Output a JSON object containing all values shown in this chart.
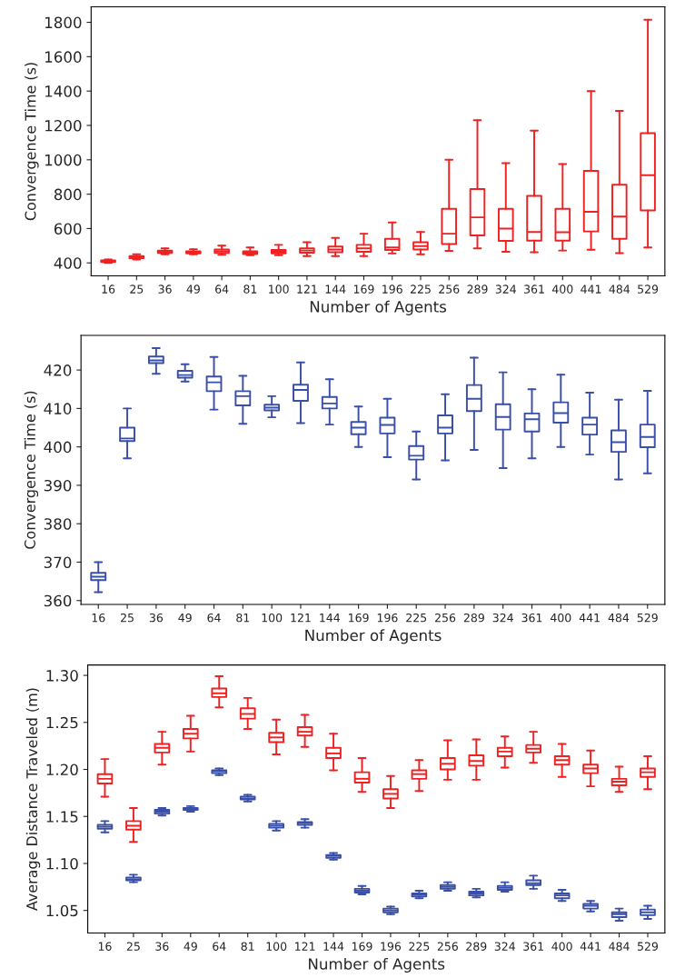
{
  "chart_data": [
    {
      "type": "box",
      "xlabel": "Number of Agents",
      "ylabel": "Convergence Time (s)",
      "categories": [
        "16",
        "25",
        "36",
        "49",
        "64",
        "81",
        "100",
        "121",
        "144",
        "169",
        "196",
        "225",
        "256",
        "289",
        "324",
        "361",
        "400",
        "441",
        "484",
        "529"
      ],
      "ylim": [
        325,
        1890
      ],
      "yticks": [
        400,
        600,
        800,
        1000,
        1200,
        1400,
        1600,
        1800
      ],
      "grid": false,
      "series": [
        {
          "color": "#ee2222",
          "boxes": [
            {
              "low": 400,
              "q1": 405,
              "median": 410,
              "q3": 415,
              "high": 420
            },
            {
              "low": 420,
              "q1": 428,
              "median": 433,
              "q3": 440,
              "high": 450
            },
            {
              "low": 450,
              "q1": 458,
              "median": 465,
              "q3": 472,
              "high": 485
            },
            {
              "low": 450,
              "q1": 456,
              "median": 462,
              "q3": 468,
              "high": 480
            },
            {
              "low": 448,
              "q1": 458,
              "median": 468,
              "q3": 478,
              "high": 500
            },
            {
              "low": 445,
              "q1": 452,
              "median": 460,
              "q3": 468,
              "high": 490
            },
            {
              "low": 445,
              "q1": 455,
              "median": 465,
              "q3": 475,
              "high": 505
            },
            {
              "low": 440,
              "q1": 460,
              "median": 472,
              "q3": 485,
              "high": 520
            },
            {
              "low": 440,
              "q1": 462,
              "median": 478,
              "q3": 495,
              "high": 545
            },
            {
              "low": 440,
              "q1": 465,
              "median": 485,
              "q3": 505,
              "high": 570
            },
            {
              "low": 455,
              "q1": 475,
              "median": 490,
              "q3": 540,
              "high": 635
            },
            {
              "low": 450,
              "q1": 478,
              "median": 498,
              "q3": 520,
              "high": 580
            },
            {
              "low": 470,
              "q1": 510,
              "median": 570,
              "q3": 715,
              "high": 1000
            },
            {
              "low": 485,
              "q1": 560,
              "median": 665,
              "q3": 830,
              "high": 1230
            },
            {
              "low": 465,
              "q1": 528,
              "median": 600,
              "q3": 715,
              "high": 980
            },
            {
              "low": 462,
              "q1": 530,
              "median": 580,
              "q3": 790,
              "high": 1170
            },
            {
              "low": 472,
              "q1": 530,
              "median": 578,
              "q3": 715,
              "high": 975
            },
            {
              "low": 477,
              "q1": 583,
              "median": 697,
              "q3": 935,
              "high": 1400
            },
            {
              "low": 457,
              "q1": 540,
              "median": 670,
              "q3": 855,
              "high": 1285
            },
            {
              "low": 490,
              "q1": 705,
              "median": 910,
              "q3": 1155,
              "high": 1815
            }
          ]
        }
      ]
    },
    {
      "type": "box",
      "xlabel": "Number of Agents",
      "ylabel": "Convergence Time (s)",
      "categories": [
        "16",
        "25",
        "36",
        "49",
        "64",
        "81",
        "100",
        "121",
        "144",
        "169",
        "196",
        "225",
        "256",
        "289",
        "324",
        "361",
        "400",
        "441",
        "484",
        "529"
      ],
      "ylim": [
        359,
        429
      ],
      "yticks": [
        360,
        370,
        380,
        390,
        400,
        410,
        420
      ],
      "grid": false,
      "series": [
        {
          "color": "#3a4fa8",
          "boxes": [
            {
              "low": 362.2,
              "q1": 365.3,
              "median": 366.2,
              "q3": 367.2,
              "high": 370
            },
            {
              "low": 397,
              "q1": 401.5,
              "median": 402.2,
              "q3": 405,
              "high": 410
            },
            {
              "low": 419,
              "q1": 421.8,
              "median": 422.5,
              "q3": 423.5,
              "high": 425.7
            },
            {
              "low": 417,
              "q1": 418,
              "median": 418.7,
              "q3": 419.8,
              "high": 421.5
            },
            {
              "low": 409.7,
              "q1": 414.5,
              "median": 416.8,
              "q3": 418.3,
              "high": 423.4
            },
            {
              "low": 406,
              "q1": 410.8,
              "median": 413.2,
              "q3": 414.5,
              "high": 418.5
            },
            {
              "low": 407.7,
              "q1": 409.5,
              "median": 410.2,
              "q3": 411,
              "high": 413.2
            },
            {
              "low": 406.2,
              "q1": 412,
              "median": 414.8,
              "q3": 416.2,
              "high": 422
            },
            {
              "low": 405.8,
              "q1": 410,
              "median": 411.3,
              "q3": 413,
              "high": 417.6
            },
            {
              "low": 400,
              "q1": 403.3,
              "median": 405,
              "q3": 406.5,
              "high": 410.5
            },
            {
              "low": 397.3,
              "q1": 403.5,
              "median": 405.7,
              "q3": 407.6,
              "high": 412.5
            },
            {
              "low": 391.5,
              "q1": 396.7,
              "median": 397.7,
              "q3": 400.2,
              "high": 404
            },
            {
              "low": 396.5,
              "q1": 403.5,
              "median": 405,
              "q3": 408.2,
              "high": 413.7
            },
            {
              "low": 399.2,
              "q1": 409.3,
              "median": 412.5,
              "q3": 416.1,
              "high": 423.2
            },
            {
              "low": 394.5,
              "q1": 404.5,
              "median": 407.8,
              "q3": 411.1,
              "high": 419.4
            },
            {
              "low": 397,
              "q1": 404,
              "median": 407.2,
              "q3": 408.7,
              "high": 415
            },
            {
              "low": 400,
              "q1": 406.3,
              "median": 408.8,
              "q3": 411.6,
              "high": 418.8
            },
            {
              "low": 398,
              "q1": 403.2,
              "median": 405.8,
              "q3": 407.6,
              "high": 414.1
            },
            {
              "low": 391.5,
              "q1": 398.7,
              "median": 401.2,
              "q3": 404.3,
              "high": 412.3
            },
            {
              "low": 393.1,
              "q1": 399.9,
              "median": 402.6,
              "q3": 405.8,
              "high": 414.6
            }
          ]
        }
      ]
    },
    {
      "type": "box",
      "xlabel": "Number of Agents",
      "ylabel": "Average Distance Traveled (m)",
      "categories": [
        "16",
        "25",
        "36",
        "49",
        "64",
        "81",
        "100",
        "121",
        "144",
        "169",
        "196",
        "225",
        "256",
        "289",
        "324",
        "361",
        "400",
        "441",
        "484",
        "529"
      ],
      "ylim": [
        1.026,
        1.311
      ],
      "yticks": [
        {
          "value": 1.05,
          "label": "1.05"
        },
        {
          "value": 1.1,
          "label": "1.10"
        },
        {
          "value": 1.15,
          "label": "1.15"
        },
        {
          "value": 1.2,
          "label": "1.20"
        },
        {
          "value": 1.25,
          "label": "1.25"
        },
        {
          "value": 1.3,
          "label": "1.30"
        }
      ],
      "grid": false,
      "series": [
        {
          "color": "#ee2222",
          "boxes": [
            {
              "low": 1.171,
              "q1": 1.185,
              "median": 1.19,
              "q3": 1.195,
              "high": 1.211
            },
            {
              "low": 1.123,
              "q1": 1.136,
              "median": 1.14,
              "q3": 1.145,
              "high": 1.159
            },
            {
              "low": 1.205,
              "q1": 1.218,
              "median": 1.223,
              "q3": 1.227,
              "high": 1.24
            },
            {
              "low": 1.219,
              "q1": 1.233,
              "median": 1.238,
              "q3": 1.243,
              "high": 1.257
            },
            {
              "low": 1.266,
              "q1": 1.277,
              "median": 1.281,
              "q3": 1.286,
              "high": 1.299
            },
            {
              "low": 1.243,
              "q1": 1.254,
              "median": 1.259,
              "q3": 1.265,
              "high": 1.276
            },
            {
              "low": 1.216,
              "q1": 1.229,
              "median": 1.234,
              "q3": 1.239,
              "high": 1.253
            },
            {
              "low": 1.224,
              "q1": 1.236,
              "median": 1.24,
              "q3": 1.245,
              "high": 1.258
            },
            {
              "low": 1.199,
              "q1": 1.212,
              "median": 1.217,
              "q3": 1.223,
              "high": 1.238
            },
            {
              "low": 1.176,
              "q1": 1.186,
              "median": 1.19,
              "q3": 1.197,
              "high": 1.212
            },
            {
              "low": 1.159,
              "q1": 1.169,
              "median": 1.174,
              "q3": 1.179,
              "high": 1.193
            },
            {
              "low": 1.177,
              "q1": 1.19,
              "median": 1.195,
              "q3": 1.199,
              "high": 1.21
            },
            {
              "low": 1.189,
              "q1": 1.2,
              "median": 1.206,
              "q3": 1.212,
              "high": 1.231
            },
            {
              "low": 1.189,
              "q1": 1.204,
              "median": 1.209,
              "q3": 1.215,
              "high": 1.232
            },
            {
              "low": 1.202,
              "q1": 1.214,
              "median": 1.219,
              "q3": 1.223,
              "high": 1.235
            },
            {
              "low": 1.207,
              "q1": 1.218,
              "median": 1.222,
              "q3": 1.226,
              "high": 1.24
            },
            {
              "low": 1.192,
              "q1": 1.205,
              "median": 1.21,
              "q3": 1.214,
              "high": 1.227
            },
            {
              "low": 1.182,
              "q1": 1.196,
              "median": 1.201,
              "q3": 1.205,
              "high": 1.22
            },
            {
              "low": 1.176,
              "q1": 1.183,
              "median": 1.187,
              "q3": 1.19,
              "high": 1.203
            },
            {
              "low": 1.179,
              "q1": 1.192,
              "median": 1.197,
              "q3": 1.201,
              "high": 1.214
            }
          ]
        },
        {
          "color": "#3a4fa8",
          "boxes": [
            {
              "low": 1.133,
              "q1": 1.137,
              "median": 1.139,
              "q3": 1.141,
              "high": 1.145
            },
            {
              "low": 1.08,
              "q1": 1.082,
              "median": 1.083,
              "q3": 1.085,
              "high": 1.088
            },
            {
              "low": 1.151,
              "q1": 1.153,
              "median": 1.155,
              "q3": 1.157,
              "high": 1.159
            },
            {
              "low": 1.155,
              "q1": 1.157,
              "median": 1.158,
              "q3": 1.159,
              "high": 1.161
            },
            {
              "low": 1.194,
              "q1": 1.196,
              "median": 1.198,
              "q3": 1.199,
              "high": 1.201
            },
            {
              "low": 1.166,
              "q1": 1.168,
              "median": 1.169,
              "q3": 1.171,
              "high": 1.173
            },
            {
              "low": 1.135,
              "q1": 1.138,
              "median": 1.14,
              "q3": 1.142,
              "high": 1.145
            },
            {
              "low": 1.138,
              "q1": 1.141,
              "median": 1.143,
              "q3": 1.144,
              "high": 1.147
            },
            {
              "low": 1.104,
              "q1": 1.106,
              "median": 1.108,
              "q3": 1.109,
              "high": 1.111
            },
            {
              "low": 1.067,
              "q1": 1.069,
              "median": 1.071,
              "q3": 1.073,
              "high": 1.076
            },
            {
              "low": 1.046,
              "q1": 1.048,
              "median": 1.05,
              "q3": 1.052,
              "high": 1.054
            },
            {
              "low": 1.063,
              "q1": 1.065,
              "median": 1.067,
              "q3": 1.068,
              "high": 1.071
            },
            {
              "low": 1.071,
              "q1": 1.073,
              "median": 1.075,
              "q3": 1.077,
              "high": 1.08
            },
            {
              "low": 1.064,
              "q1": 1.066,
              "median": 1.068,
              "q3": 1.07,
              "high": 1.073
            },
            {
              "low": 1.07,
              "q1": 1.072,
              "median": 1.074,
              "q3": 1.076,
              "high": 1.08
            },
            {
              "low": 1.073,
              "q1": 1.077,
              "median": 1.079,
              "q3": 1.082,
              "high": 1.087
            },
            {
              "low": 1.06,
              "q1": 1.063,
              "median": 1.066,
              "q3": 1.068,
              "high": 1.072
            },
            {
              "low": 1.049,
              "q1": 1.052,
              "median": 1.055,
              "q3": 1.057,
              "high": 1.06
            },
            {
              "low": 1.039,
              "q1": 1.043,
              "median": 1.046,
              "q3": 1.048,
              "high": 1.052
            },
            {
              "low": 1.041,
              "q1": 1.045,
              "median": 1.048,
              "q3": 1.051,
              "high": 1.055
            }
          ]
        }
      ]
    }
  ]
}
